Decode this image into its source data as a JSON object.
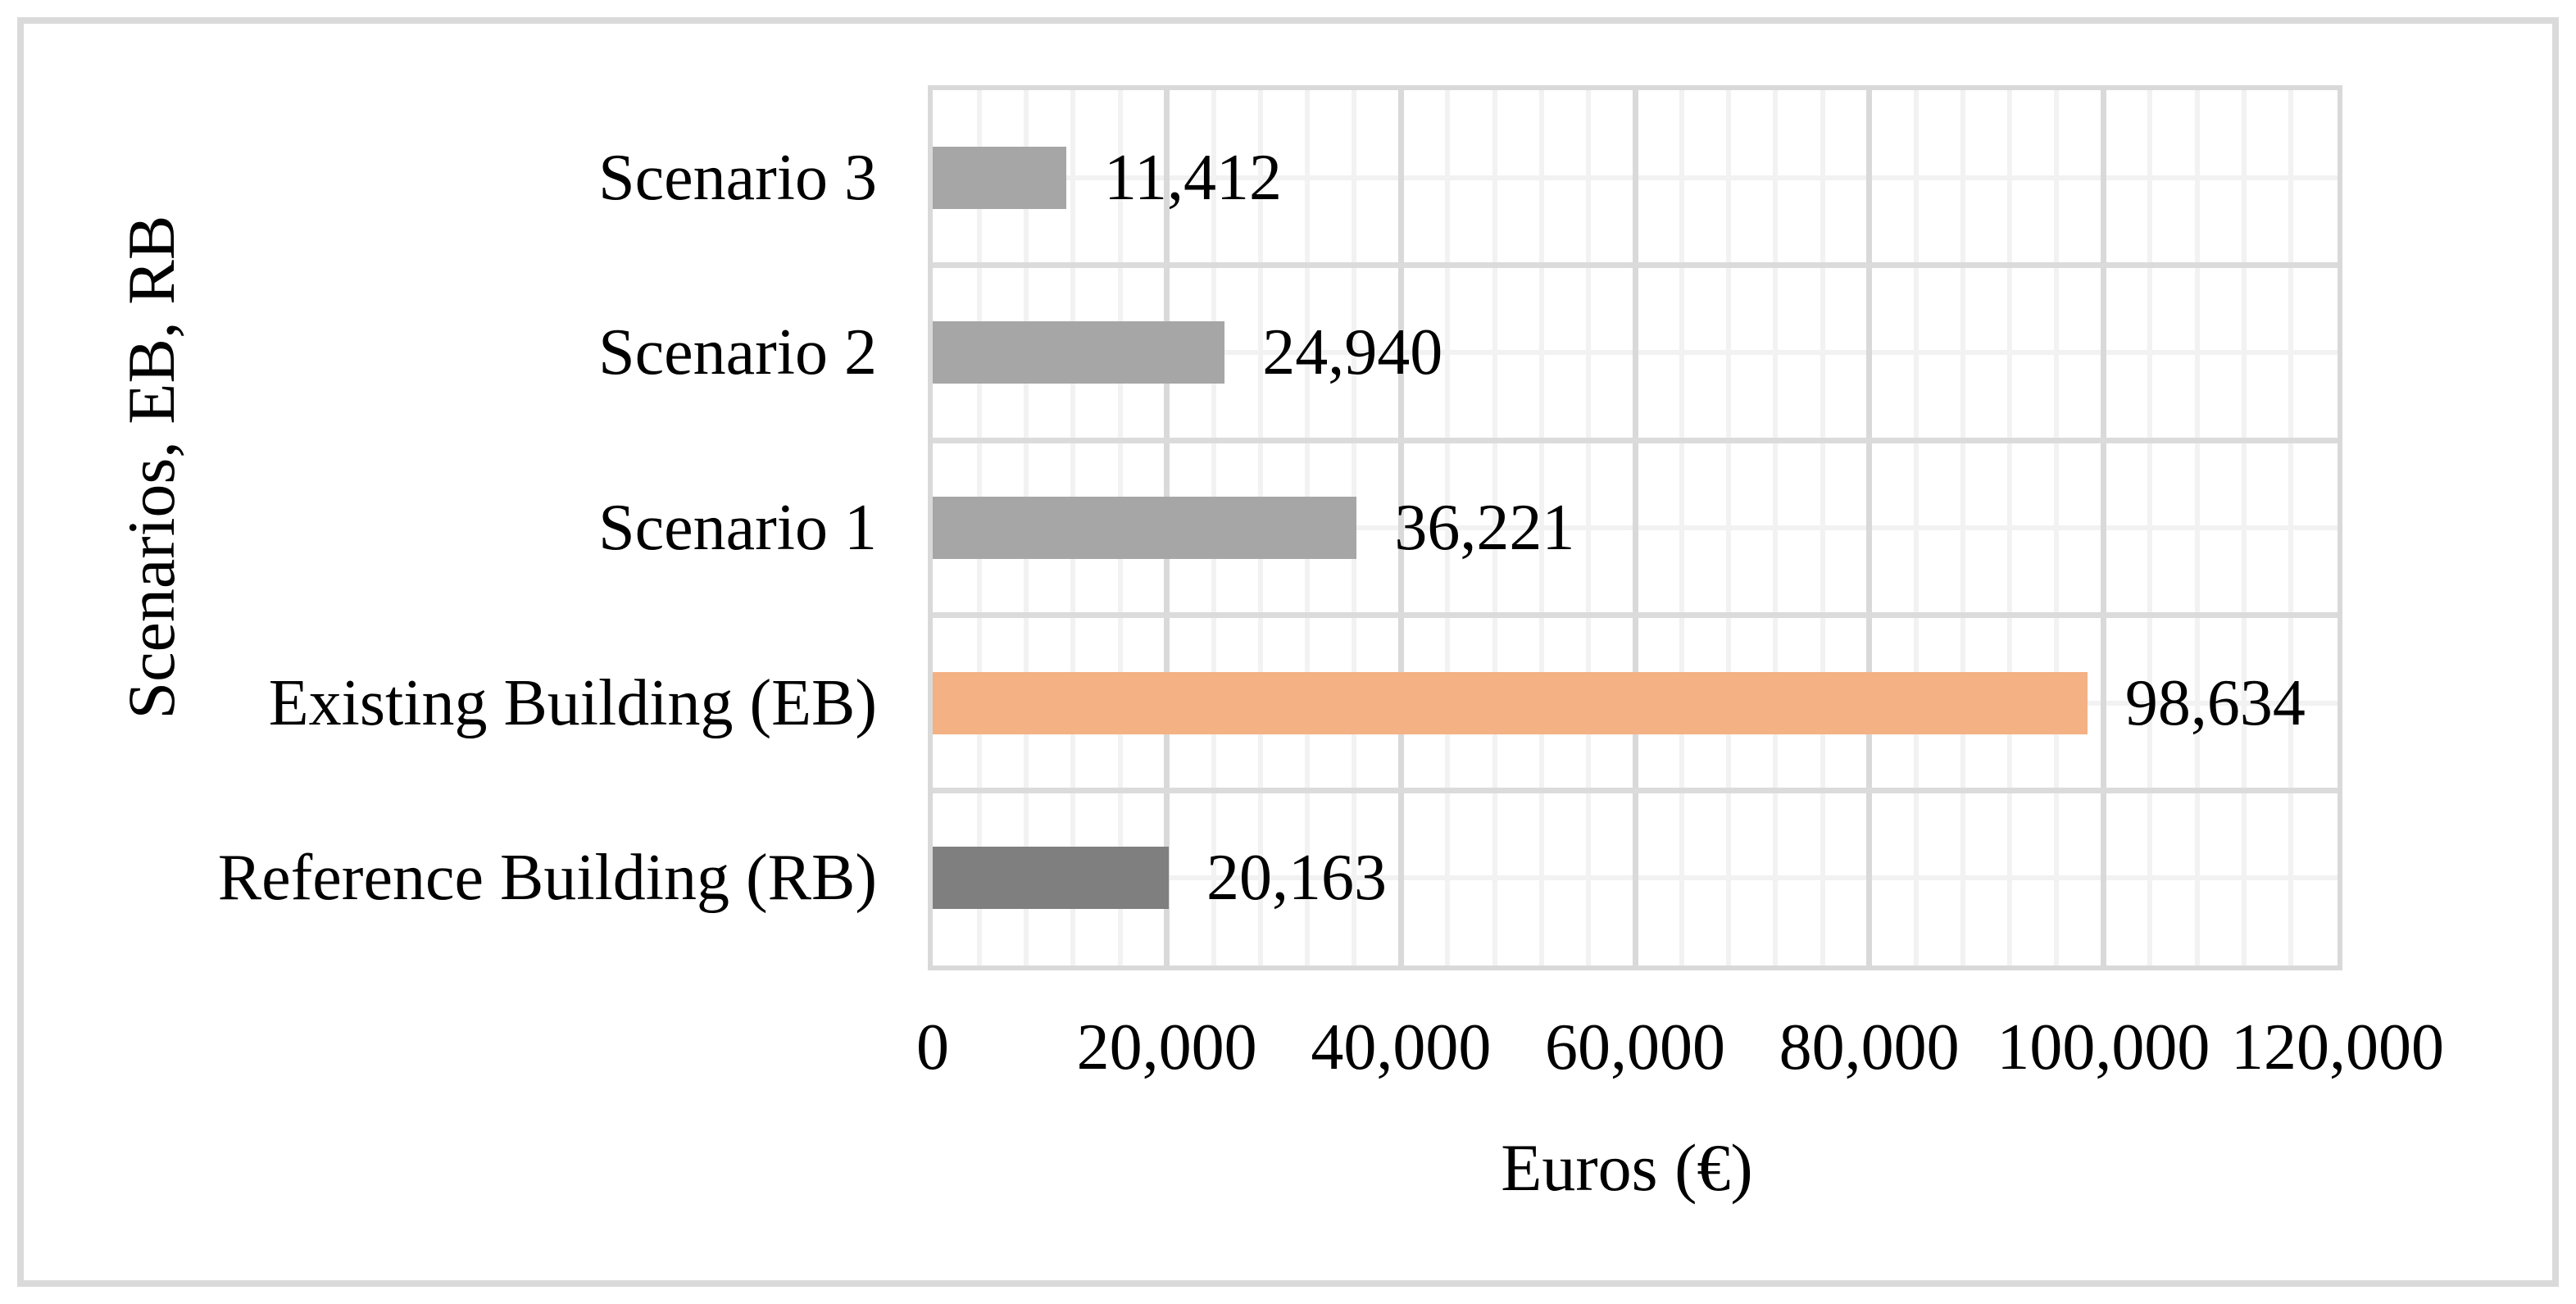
{
  "chart_data": {
    "type": "bar",
    "orientation": "horizontal",
    "categories": [
      "Scenario 3",
      "Scenario 2",
      "Scenario 1",
      "Existing Building (EB)",
      "Reference Building (RB)"
    ],
    "values": [
      11412,
      24940,
      36221,
      98634,
      20163
    ],
    "value_labels": [
      "11,412",
      "24,940",
      "36,221",
      "98,634",
      "20,163"
    ],
    "bar_colors": [
      "#A6A6A6",
      "#A6A6A6",
      "#A6A6A6",
      "#F4B183",
      "#7F7F7F"
    ],
    "xlabel": "Euros (€)",
    "ylabel": "Scenarios, EB, RB",
    "xlim": [
      0,
      120000
    ],
    "x_ticks": [
      0,
      20000,
      40000,
      60000,
      80000,
      100000,
      120000
    ],
    "x_tick_labels": [
      "0",
      "20,000",
      "40,000",
      "60,000",
      "80,000",
      "100,000",
      "120,000"
    ],
    "x_minor_unit": 4000,
    "grid": {
      "vertical_major": true,
      "vertical_minor": true,
      "horizontal_major": true,
      "horizontal_minor": true
    },
    "legend": "none"
  },
  "colors": {
    "grid_major_vertical": "#D9D9D9",
    "grid_major_horizontal": "#DBDBDB",
    "grid_minor": "#F2F2F2",
    "plot_border": "#D9D9D9",
    "figure_border": "#DADADA",
    "text": "#000000",
    "background": "#FFFFFF"
  }
}
